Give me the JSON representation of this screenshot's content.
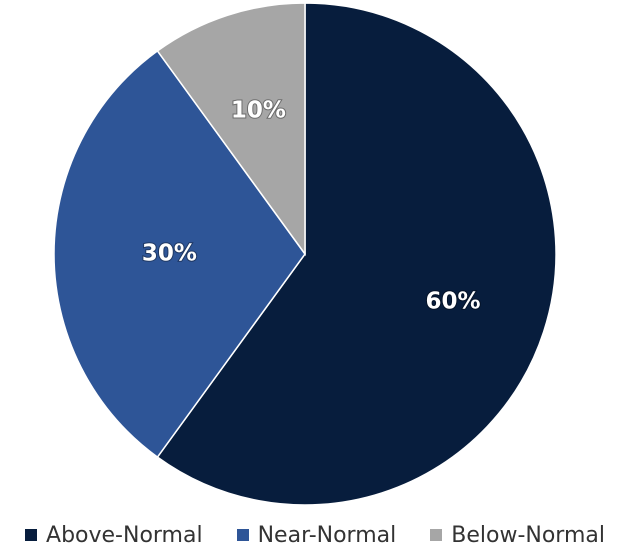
{
  "chart_data": {
    "type": "pie",
    "categories": [
      "Above-Normal",
      "Near-Normal",
      "Below-Normal"
    ],
    "values": [
      60,
      30,
      10
    ],
    "colors": [
      "#071d3d",
      "#2e5597",
      "#a6a6a6"
    ],
    "data_labels": [
      "60%",
      "30%",
      "10%"
    ],
    "legend": {
      "placement": "bottom",
      "items": [
        "Above-Normal",
        "Near-Normal",
        "Below-Normal"
      ]
    },
    "start_angle": "top, clockwise"
  }
}
